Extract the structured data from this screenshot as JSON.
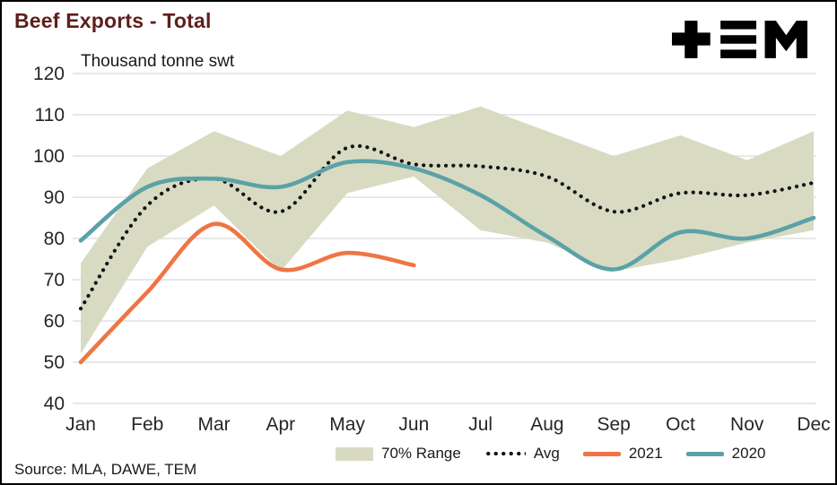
{
  "header": {
    "title": "Beef Exports - Total",
    "subtitle": "Thousand tonne swt",
    "logo_alt": "TEM"
  },
  "footer": {
    "source": "Source: MLA, DAWE, TEM"
  },
  "colors": {
    "title": "#5e1f1b",
    "band": "#d8dbc2",
    "avg": "#141414",
    "s2021": "#ee7545",
    "s2020": "#5aa2a7",
    "grid": "#d9d9d9",
    "text": "#262626"
  },
  "chart_data": {
    "type": "line",
    "title": "Beef Exports - Total",
    "ylabel": "Thousand tonne swt",
    "categories": [
      "Jan",
      "Feb",
      "Mar",
      "Apr",
      "May",
      "Jun",
      "Jul",
      "Aug",
      "Sep",
      "Oct",
      "Nov",
      "Dec"
    ],
    "ylim": [
      40,
      120
    ],
    "yticks": [
      40,
      50,
      60,
      70,
      80,
      90,
      100,
      110,
      120
    ],
    "grid": "horizontal",
    "legend_position": "bottom",
    "band": {
      "name": "70% Range",
      "color": "#d8dbc2",
      "upper": [
        74,
        97,
        106,
        100,
        111,
        107,
        112,
        106,
        100,
        105,
        99,
        106
      ],
      "lower": [
        52,
        78,
        88,
        72,
        91,
        95,
        82,
        79,
        72,
        75,
        79,
        82
      ]
    },
    "series": [
      {
        "name": "Avg",
        "style": "dotted",
        "color": "#141414",
        "values": [
          63,
          88,
          94.5,
          86.5,
          102,
          98,
          97.5,
          95,
          86.5,
          91,
          90.5,
          93.5
        ]
      },
      {
        "name": "2021",
        "style": "solid",
        "color": "#ee7545",
        "values": [
          50,
          67,
          83.5,
          72.5,
          76.5,
          73.5,
          null,
          null,
          null,
          null,
          null,
          null
        ]
      },
      {
        "name": "2020",
        "style": "solid",
        "color": "#5aa2a7",
        "values": [
          79.5,
          92.5,
          94.5,
          92.5,
          98.5,
          97,
          90.5,
          80.5,
          72.5,
          81.5,
          80,
          85
        ]
      }
    ]
  }
}
